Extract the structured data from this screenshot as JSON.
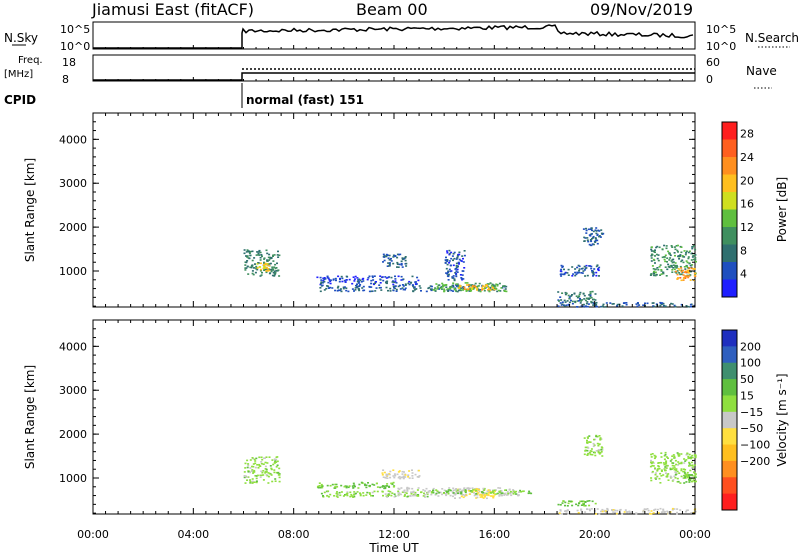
{
  "header": {
    "station": "Jiamusi East (fitACF)",
    "beam": "Beam 00",
    "date": "09/Nov/2019"
  },
  "panels": {
    "nsky_label": "N.Sky",
    "nsky_ticks": [
      "10^5",
      "10^0"
    ],
    "nsearch_label": "N.Search",
    "nsearch_ticks": [
      "10^5",
      "10^0"
    ],
    "freq_label_top": "Freq.",
    "freq_label_bottom": "[MHz]",
    "freq_ticks": [
      "18",
      "8"
    ],
    "nave_label": "Nave",
    "nave_ticks": [
      "60",
      "0"
    ],
    "cpid_label": "CPID",
    "cpid_value": "normal (fast) 151"
  },
  "chart_data": [
    {
      "type": "heatmap",
      "id": "power",
      "ylabel": "Slant Range [km]",
      "yticks": [
        1000,
        2000,
        3000,
        4000
      ],
      "ylim": [
        180,
        4600
      ],
      "xlim": [
        0,
        24
      ],
      "xticks": [
        "00:00",
        "04:00",
        "08:00",
        "12:00",
        "16:00",
        "20:00",
        "00:00"
      ],
      "xlabel": "Time UT",
      "colorbar": {
        "label": "Power [dB]",
        "ticks": [
          "4",
          "8",
          "12",
          "16",
          "20",
          "24",
          "28"
        ],
        "range": [
          0,
          30
        ],
        "colors": [
          "#1f1fff",
          "#1f4fbf",
          "#2f6f6f",
          "#3f8f5f",
          "#5fbf3f",
          "#cfdf1f",
          "#ffbf1f",
          "#ff8f1f",
          "#ff5f1f",
          "#ff1f1f"
        ]
      },
      "regions": [
        {
          "t0": 6.0,
          "t1": 7.4,
          "r0": 900,
          "r1": 1500,
          "value": 9
        },
        {
          "t0": 6.5,
          "t1": 7.0,
          "r0": 1000,
          "r1": 1200,
          "value": 18
        },
        {
          "t0": 8.9,
          "t1": 13.0,
          "r0": 700,
          "r1": 900,
          "value": 4
        },
        {
          "t0": 9.0,
          "t1": 16.5,
          "r0": 550,
          "r1": 700,
          "value": 6
        },
        {
          "t0": 13.5,
          "t1": 16.5,
          "r0": 550,
          "r1": 750,
          "value": 12
        },
        {
          "t0": 14.5,
          "t1": 16.0,
          "r0": 580,
          "r1": 700,
          "value": 20
        },
        {
          "t0": 11.5,
          "t1": 12.5,
          "r0": 1100,
          "r1": 1400,
          "value": 6
        },
        {
          "t0": 14.0,
          "t1": 14.8,
          "r0": 800,
          "r1": 1500,
          "value": 5
        },
        {
          "t0": 18.5,
          "t1": 20.0,
          "r0": 300,
          "r1": 550,
          "value": 8
        },
        {
          "t0": 19.5,
          "t1": 20.3,
          "r0": 1600,
          "r1": 2000,
          "value": 6
        },
        {
          "t0": 18.6,
          "t1": 20.2,
          "r0": 900,
          "r1": 1150,
          "value": 5
        },
        {
          "t0": 18.5,
          "t1": 24.0,
          "r0": 200,
          "r1": 300,
          "value": 6
        },
        {
          "t0": 22.2,
          "t1": 24.0,
          "r0": 900,
          "r1": 1600,
          "value": 10
        },
        {
          "t0": 23.2,
          "t1": 24.0,
          "r0": 800,
          "r1": 1100,
          "value": 22
        }
      ]
    },
    {
      "type": "heatmap",
      "id": "velocity",
      "ylabel": "Slant Range [km]",
      "yticks": [
        1000,
        2000,
        3000,
        4000
      ],
      "ylim": [
        180,
        4600
      ],
      "xlim": [
        0,
        24
      ],
      "xticks": [
        "00:00",
        "04:00",
        "08:00",
        "12:00",
        "16:00",
        "20:00",
        "00:00"
      ],
      "xlabel": "Time UT",
      "colorbar": {
        "label": "Velocity [m s⁻¹]",
        "ticks": [
          "200",
          "100",
          "50",
          "15",
          "−15",
          "−50",
          "−100",
          "−200"
        ],
        "colors": [
          "#1f2fbf",
          "#2f5fbf",
          "#3f8f6f",
          "#5fbf3f",
          "#8fdf3f",
          "#c8c8c8",
          "#ffdf3f",
          "#ffbf1f",
          "#ff8f1f",
          "#ff4f1f",
          "#ff1f1f"
        ]
      },
      "regions": [
        {
          "t0": 6.0,
          "t1": 7.4,
          "r0": 900,
          "r1": 1500,
          "value": 0
        },
        {
          "t0": 8.9,
          "t1": 12.0,
          "r0": 780,
          "r1": 920,
          "value": 20
        },
        {
          "t0": 9.0,
          "t1": 13.5,
          "r0": 580,
          "r1": 720,
          "value": 0
        },
        {
          "t0": 11.5,
          "t1": 13.0,
          "r0": 1000,
          "r1": 1200,
          "value": -40
        },
        {
          "t0": 12.0,
          "t1": 17.0,
          "r0": 600,
          "r1": 800,
          "value": -30
        },
        {
          "t0": 14.3,
          "t1": 16.0,
          "r0": 550,
          "r1": 800,
          "value": -60
        },
        {
          "t0": 13.5,
          "t1": 17.5,
          "r0": 650,
          "r1": 750,
          "value": 20
        },
        {
          "t0": 18.5,
          "t1": 20.0,
          "r0": 380,
          "r1": 500,
          "value": 25
        },
        {
          "t0": 19.5,
          "t1": 20.3,
          "r0": 1500,
          "r1": 2000,
          "value": 0
        },
        {
          "t0": 18.5,
          "t1": 24.0,
          "r0": 200,
          "r1": 320,
          "value": -40
        },
        {
          "t0": 22.2,
          "t1": 24.0,
          "r0": 900,
          "r1": 1600,
          "value": 0
        },
        {
          "t0": 23.5,
          "t1": 24.0,
          "r0": 900,
          "r1": 1100,
          "value": 20
        }
      ]
    }
  ]
}
